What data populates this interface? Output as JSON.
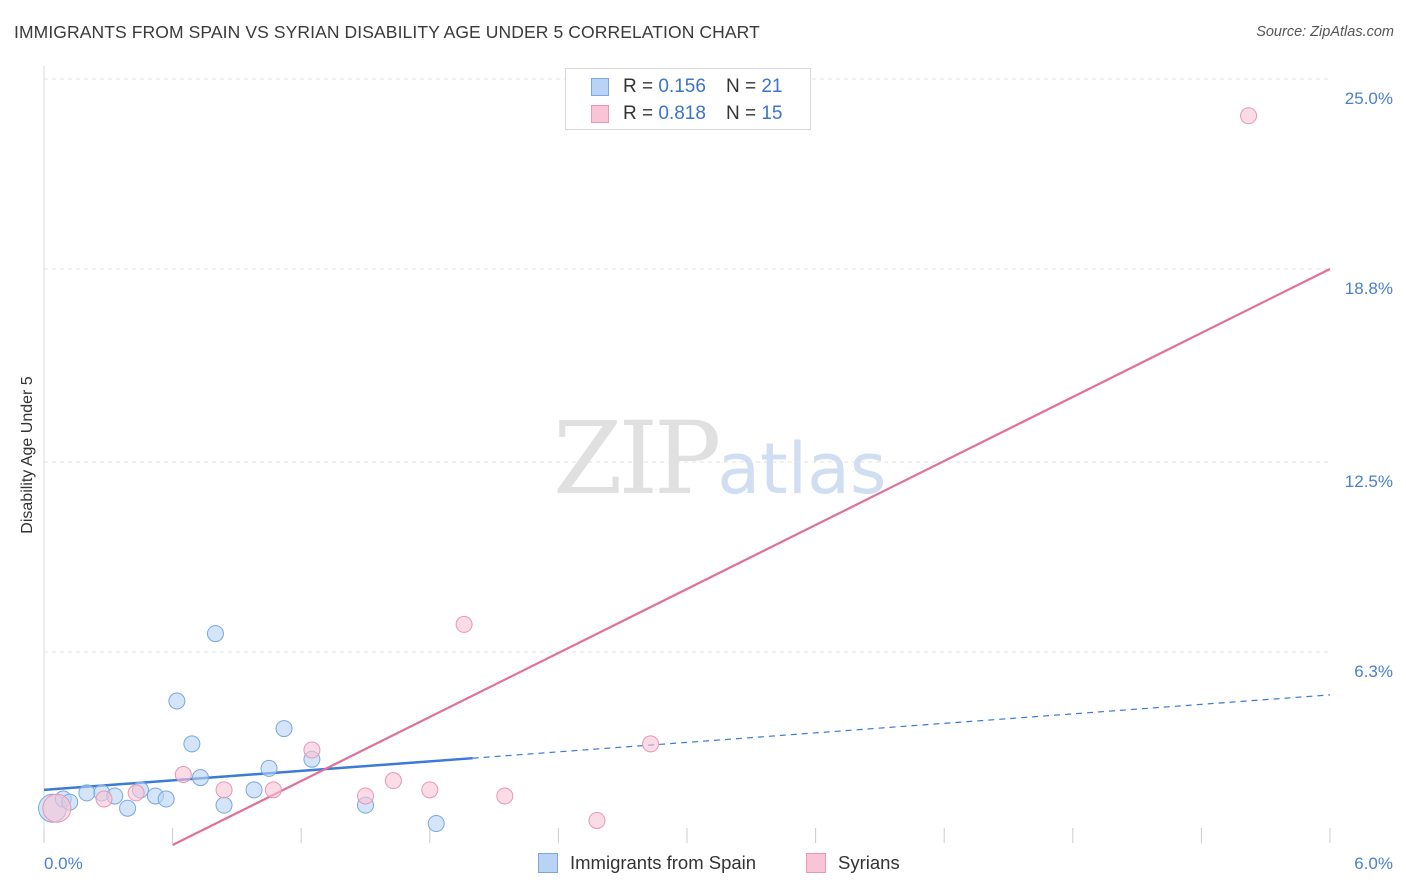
{
  "header": {
    "title": "IMMIGRANTS FROM SPAIN VS SYRIAN DISABILITY AGE UNDER 5 CORRELATION CHART",
    "source": "Source: ZipAtlas.com"
  },
  "watermark": {
    "zip": "ZIP",
    "atlas": "atlas"
  },
  "legend_top": {
    "rows": [
      {
        "r_label": "R = ",
        "r_value": "0.156",
        "n_label": "N = ",
        "n_value": "21"
      },
      {
        "r_label": "R = ",
        "r_value": "0.818",
        "n_label": "N = ",
        "n_value": "15"
      }
    ]
  },
  "colors": {
    "blue_fill": "#b8d3f5",
    "blue_stroke": "#7aa7e0",
    "blue_line": "#3a7bd5",
    "pink_fill": "#f8c4d6",
    "pink_stroke": "#e896b4",
    "pink_line": "#e0709a",
    "grid": "#e2e2e2",
    "tick": "#4a7fd0"
  },
  "chart_data": {
    "type": "scatter",
    "title": "IMMIGRANTS FROM SPAIN VS SYRIAN DISABILITY AGE UNDER 5 CORRELATION CHART",
    "xlabel": "",
    "ylabel": "Disability Age Under 5",
    "xlim": [
      0,
      6
    ],
    "ylim": [
      0,
      25
    ],
    "x_tick_labels": [
      "0.0%",
      "6.0%"
    ],
    "y_ticks": [
      6.3,
      12.5,
      18.8,
      25.0
    ],
    "y_tick_labels": [
      "6.3%",
      "12.5%",
      "18.8%",
      "25.0%"
    ],
    "grid": true,
    "legend_position": "top-center",
    "series": [
      {
        "name": "Immigrants from Spain",
        "r": 0.156,
        "n": 21,
        "points": [
          [
            0.04,
            1.2
          ],
          [
            0.09,
            1.5
          ],
          [
            0.12,
            1.4
          ],
          [
            0.2,
            1.7
          ],
          [
            0.27,
            1.7
          ],
          [
            0.33,
            1.6
          ],
          [
            0.39,
            1.2
          ],
          [
            0.45,
            1.8
          ],
          [
            0.52,
            1.6
          ],
          [
            0.57,
            1.5
          ],
          [
            0.62,
            4.7
          ],
          [
            0.69,
            3.3
          ],
          [
            0.73,
            2.2
          ],
          [
            0.8,
            6.9
          ],
          [
            0.84,
            1.3
          ],
          [
            0.98,
            1.8
          ],
          [
            1.05,
            2.5
          ],
          [
            1.12,
            3.8
          ],
          [
            1.25,
            2.8
          ],
          [
            1.5,
            1.3
          ],
          [
            1.83,
            0.7
          ]
        ],
        "trend": {
          "x_solid": [
            0.0,
            2.0
          ],
          "x_dashed": [
            2.0,
            6.0
          ],
          "y_at_0": 1.8,
          "y_at_6": 4.9
        }
      },
      {
        "name": "Syrians",
        "r": 0.818,
        "n": 15,
        "points": [
          [
            0.06,
            1.2
          ],
          [
            0.28,
            1.5
          ],
          [
            0.43,
            1.7
          ],
          [
            0.65,
            2.3
          ],
          [
            0.84,
            1.8
          ],
          [
            1.07,
            1.8
          ],
          [
            1.25,
            3.1
          ],
          [
            1.5,
            1.6
          ],
          [
            1.63,
            2.1
          ],
          [
            1.8,
            1.8
          ],
          [
            1.96,
            7.2
          ],
          [
            2.15,
            1.6
          ],
          [
            2.58,
            0.8
          ],
          [
            2.83,
            3.3
          ],
          [
            5.62,
            23.8
          ]
        ],
        "trend": {
          "x0": 0.6,
          "y0": 0.0,
          "x1": 6.0,
          "y1": 18.8
        }
      }
    ]
  },
  "bottom_legend": {
    "items": [
      {
        "label": "Immigrants from Spain"
      },
      {
        "label": "Syrians"
      }
    ]
  }
}
